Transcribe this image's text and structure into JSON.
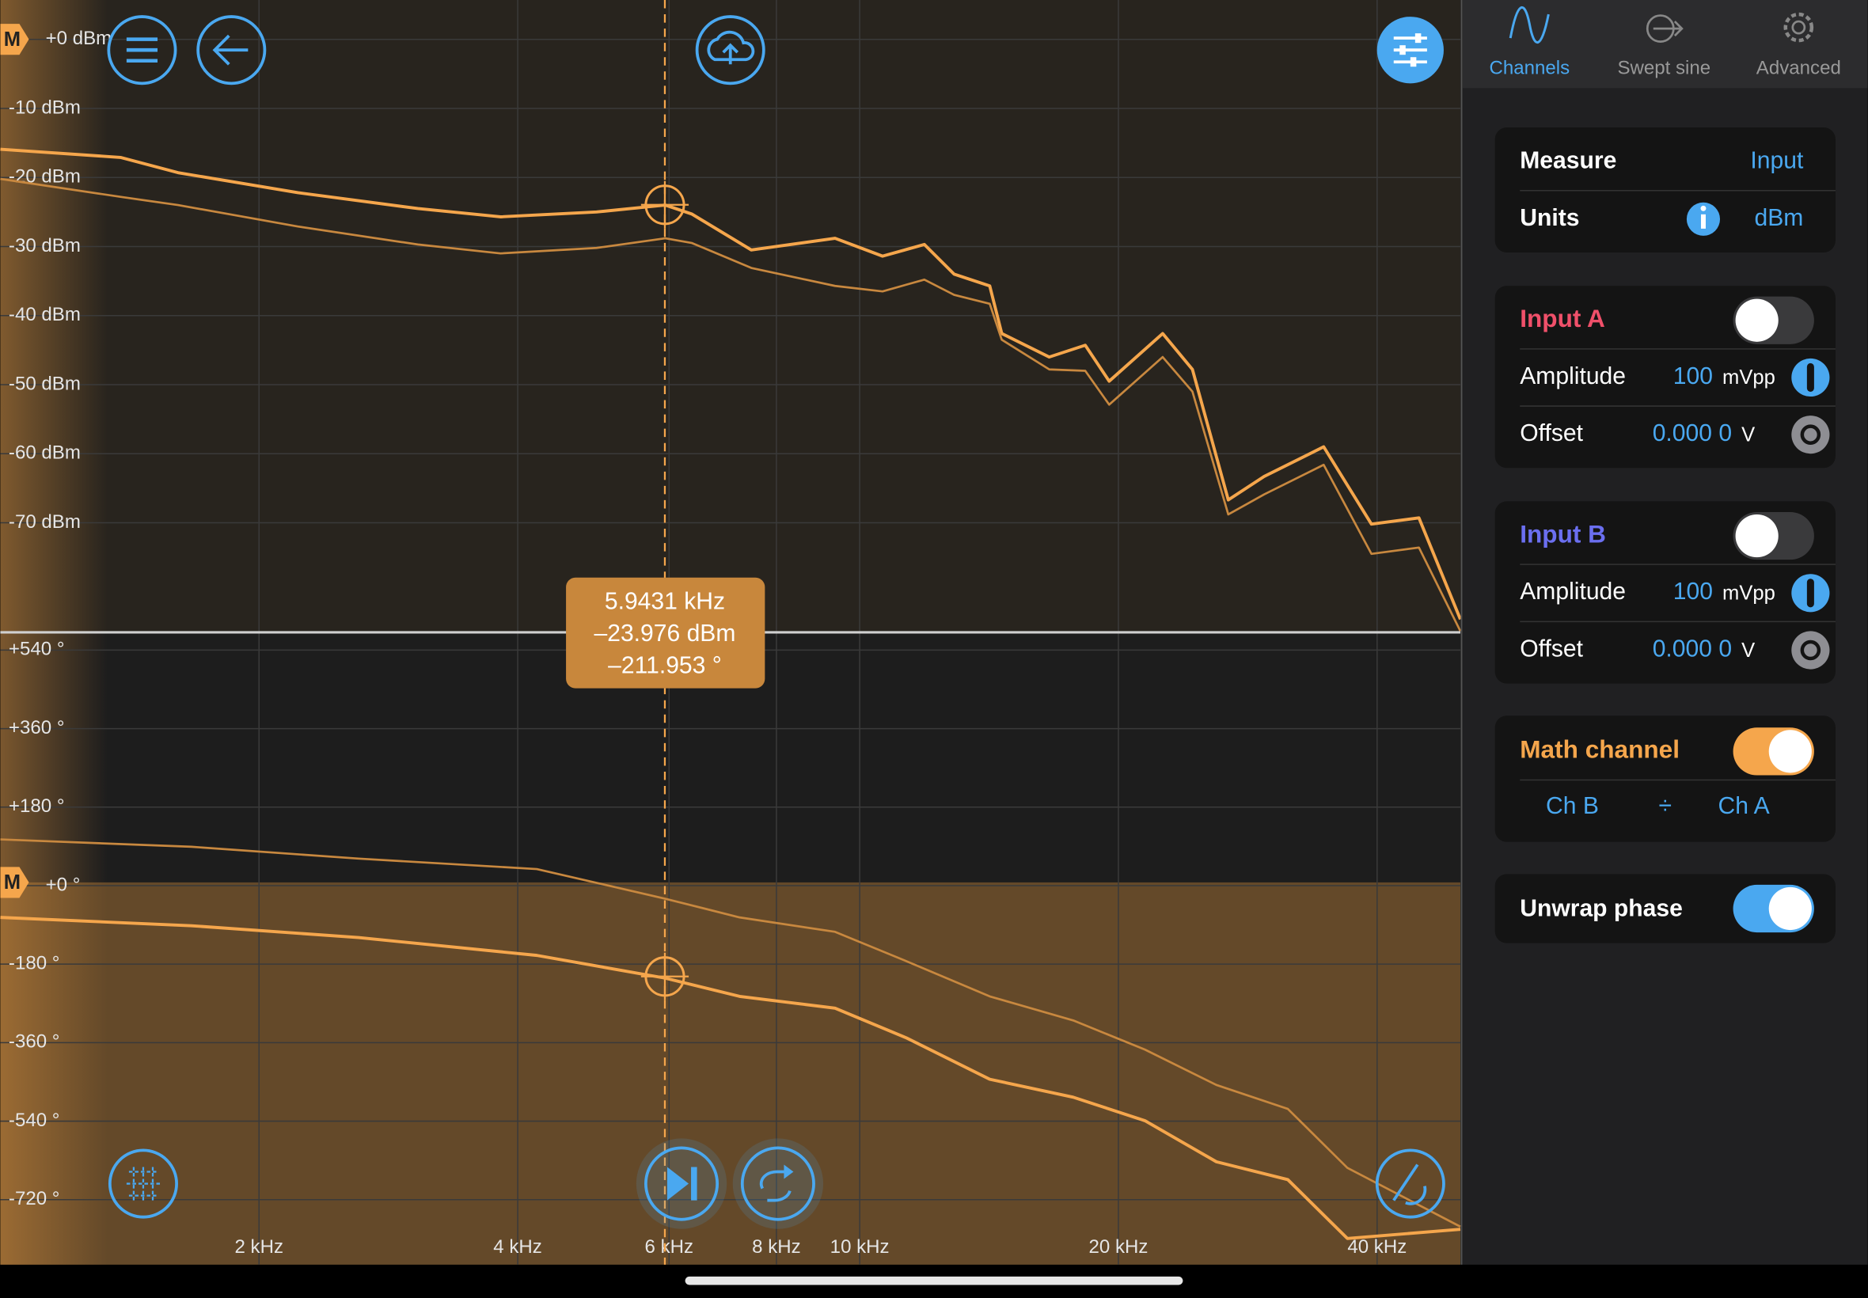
{
  "chart_data": [
    {
      "type": "line",
      "log_x": true,
      "grid": true,
      "x": [
        1.0,
        1.38,
        1.61,
        2.22,
        3.06,
        3.82,
        4.94,
        5.94,
        6.38,
        7.48,
        9.36,
        10.63,
        11.89,
        12.88,
        14.17,
        14.63,
        16.62,
        18.3,
        19.51,
        22.52,
        24.39,
        26.85,
        29.55,
        34.66,
        39.39,
        44.75,
        50
      ],
      "xlim": [
        1,
        50
      ],
      "ylim": [
        -85.7,
        5.7
      ],
      "yticks": [
        {
          "value": 0,
          "label": "+0 dBm"
        },
        {
          "value": -10,
          "label": "-10 dBm"
        },
        {
          "value": -20,
          "label": "-20 dBm"
        },
        {
          "value": -30,
          "label": "-30 dBm"
        },
        {
          "value": -40,
          "label": "-40 dBm"
        },
        {
          "value": -50,
          "label": "-50 dBm"
        },
        {
          "value": -60,
          "label": "-60 dBm"
        },
        {
          "value": -70,
          "label": "-70 dBm"
        }
      ],
      "series": [
        {
          "color": "#f5a64c",
          "values": [
            -15.9,
            -17.1,
            -19.3,
            -22.2,
            -24.5,
            -25.7,
            -25.0,
            -24.0,
            -25.3,
            -30.5,
            -28.8,
            -31.4,
            -29.7,
            -34.0,
            -35.7,
            -42.6,
            -46.0,
            -44.3,
            -49.5,
            -42.6,
            -47.8,
            -66.7,
            -63.3,
            -59.0,
            -70.2,
            -69.3,
            -84.0
          ]
        },
        {
          "color": "#c8883f",
          "values": [
            -20.2,
            -22.8,
            -24.0,
            -27.1,
            -29.7,
            -31.0,
            -30.2,
            -28.8,
            -29.5,
            -33.1,
            -35.7,
            -36.5,
            -34.8,
            -37.0,
            -38.3,
            -43.5,
            -47.8,
            -48.0,
            -52.9,
            -46.0,
            -51.0,
            -68.8,
            -65.9,
            -61.6,
            -74.5,
            -73.6,
            -85.7
          ]
        }
      ]
    },
    {
      "type": "line",
      "log_x": true,
      "grid": true,
      "x": [
        1.0,
        1.67,
        2.61,
        4.21,
        5.94,
        7.25,
        9.36,
        11.33,
        14.17,
        17.72,
        21.47,
        26.0,
        31.49,
        36.94,
        50
      ],
      "xlim": [
        1,
        50
      ],
      "xticks": [
        {
          "value": 2,
          "label": "2 kHz"
        },
        {
          "value": 4,
          "label": "4 kHz"
        },
        {
          "value": 6,
          "label": "6 kHz"
        },
        {
          "value": 8,
          "label": "8 kHz"
        },
        {
          "value": 10,
          "label": "10 kHz"
        },
        {
          "value": 20,
          "label": "20 kHz"
        },
        {
          "value": 40,
          "label": "40 kHz"
        }
      ],
      "ylim": [
        -869,
        578
      ],
      "yticks": [
        {
          "value": 540,
          "label": "+540 °"
        },
        {
          "value": 360,
          "label": "+360 °"
        },
        {
          "value": 180,
          "label": "+180 °"
        },
        {
          "value": 0,
          "label": "+0 °"
        },
        {
          "value": -180,
          "label": "-180 °"
        },
        {
          "value": -360,
          "label": "-360 °"
        },
        {
          "value": -540,
          "label": "-540 °"
        },
        {
          "value": -720,
          "label": "-720 °"
        }
      ],
      "series": [
        {
          "color": "#f5a64c",
          "values": [
            -73,
            -92,
            -119,
            -160,
            -212,
            -254,
            -281,
            -349,
            -444,
            -485,
            -539,
            -633,
            -674,
            -809,
            -788
          ]
        },
        {
          "color": "#c8883f",
          "values": [
            106,
            89,
            62,
            38,
            -30,
            -73,
            -106,
            -173,
            -254,
            -309,
            -376,
            -457,
            -512,
            -647,
            -782
          ]
        }
      ]
    }
  ],
  "markers": [
    "M",
    "M"
  ],
  "cursor": [
    "5.9431 kHz",
    "–23.976 dBm",
    "–211.953 °"
  ],
  "tabs": [
    "Channels",
    "Swept sine",
    "Advanced"
  ],
  "settings": {
    "measure": {
      "label": "Measure",
      "value": "Input"
    },
    "units": {
      "label": "Units",
      "value": "dBm"
    }
  },
  "input_a": {
    "title": "Input A",
    "amplitude_label": "Amplitude",
    "amplitude": 100,
    "amplitude_unit": "mVpp",
    "offset_label": "Offset",
    "offset": "0.000 0",
    "offset_unit": "V"
  },
  "input_b": {
    "title": "Input B",
    "amplitude_label": "Amplitude",
    "amplitude": 100,
    "amplitude_unit": "mVpp",
    "offset_label": "Offset",
    "offset": "0.000 0",
    "offset_unit": "V"
  },
  "math": {
    "title": "Math channel",
    "numerator": "Ch B",
    "operator": "÷",
    "denominator": "Ch A"
  },
  "unwrap": "Unwrap phase"
}
